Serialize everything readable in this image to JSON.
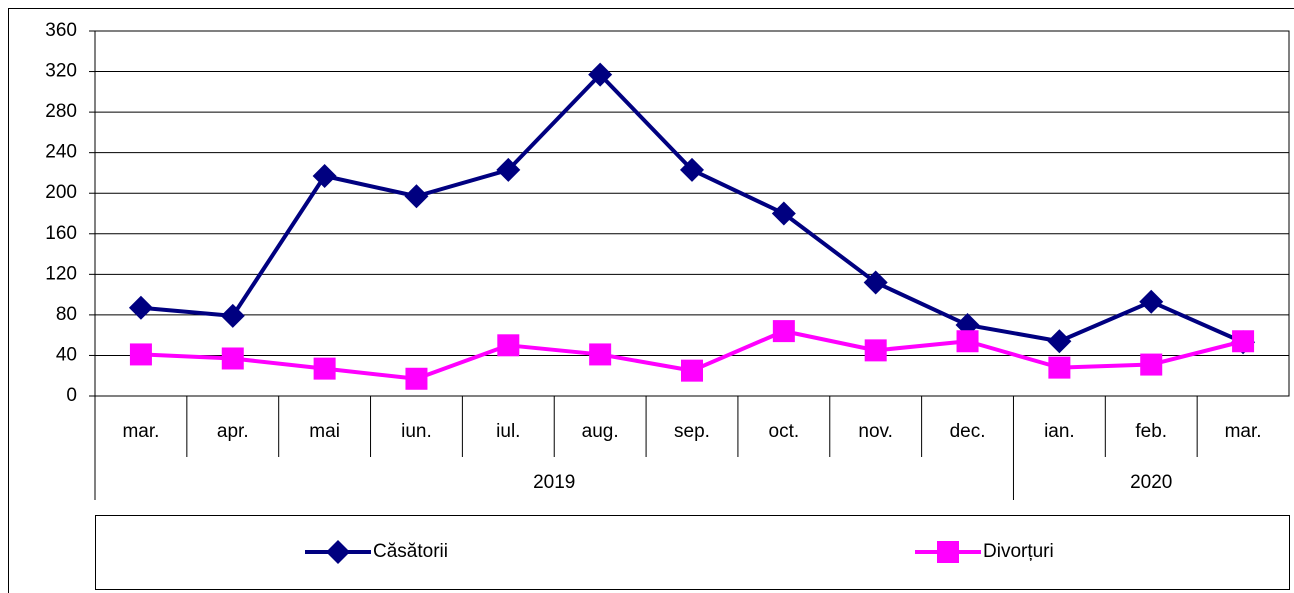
{
  "chart_data": {
    "type": "line",
    "categories": [
      "mar.",
      "apr.",
      "mai",
      "iun.",
      "iul.",
      "aug.",
      "sep.",
      "oct.",
      "nov.",
      "dec.",
      "ian.",
      "feb.",
      "mar."
    ],
    "groups": [
      {
        "label": "2019",
        "count": 10
      },
      {
        "label": "2020",
        "count": 3
      }
    ],
    "series": [
      {
        "name": "Căsătorii",
        "color": "#000080",
        "marker": "diamond",
        "values": [
          87,
          79,
          217,
          197,
          223,
          317,
          223,
          180,
          112,
          70,
          54,
          93,
          53
        ]
      },
      {
        "name": "Divorțuri",
        "color": "#ff00ff",
        "marker": "square",
        "values": [
          41,
          37,
          27,
          17,
          50,
          41,
          25,
          64,
          45,
          54,
          28,
          31,
          54
        ]
      }
    ],
    "ylim": [
      0,
      360
    ],
    "yticks": [
      0,
      40,
      80,
      120,
      160,
      200,
      240,
      280,
      320,
      360
    ],
    "grid": true,
    "legend": "bottom"
  }
}
